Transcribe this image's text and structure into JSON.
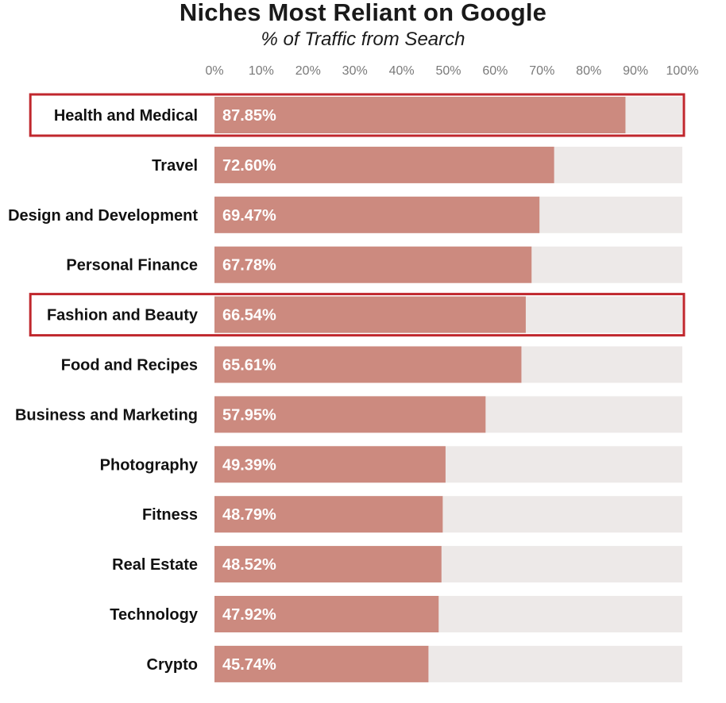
{
  "chart_data": {
    "type": "bar",
    "orientation": "horizontal",
    "title": "Niches Most Reliant on Google",
    "subtitle": "% of Traffic from Search",
    "xlim": [
      0,
      100
    ],
    "x_ticks": [
      "0%",
      "10%",
      "20%",
      "30%",
      "40%",
      "50%",
      "60%",
      "70%",
      "80%",
      "90%",
      "100%"
    ],
    "categories": [
      "Health and Medical",
      "Travel",
      "Design and Development",
      "Personal Finance",
      "Fashion and Beauty",
      "Food and Recipes",
      "Business and Marketing",
      "Photography",
      "Fitness",
      "Real Estate",
      "Technology",
      "Crypto"
    ],
    "values": [
      87.85,
      72.6,
      69.47,
      67.78,
      66.54,
      65.61,
      57.95,
      49.39,
      48.79,
      48.52,
      47.92,
      45.74
    ],
    "value_labels": [
      "87.85%",
      "72.60%",
      "69.47%",
      "67.78%",
      "66.54%",
      "65.61%",
      "57.95%",
      "49.39%",
      "48.79%",
      "48.52%",
      "47.92%",
      "45.74%"
    ],
    "highlighted": [
      "Health and Medical",
      "Fashion and Beauty"
    ],
    "legend": "none",
    "grid": false,
    "colors": {
      "bar": "#cc8a7f",
      "track": "#ede9e8",
      "highlight_border": "#c0272d",
      "value_label": "#ffffff"
    }
  }
}
